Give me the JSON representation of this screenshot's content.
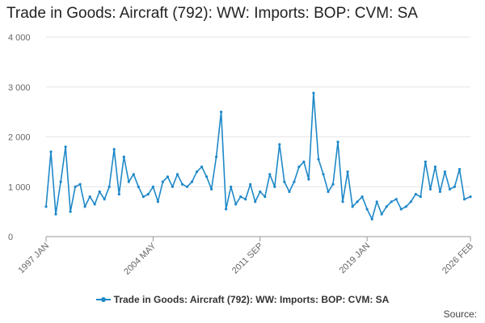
{
  "chart_data": {
    "type": "line",
    "title": "Trade in Goods: Aircraft (792): WW: Imports: BOP: CVM: SA",
    "xlabel": "",
    "ylabel": "",
    "ylim": [
      0,
      4000
    ],
    "y_ticks": [
      0,
      1000,
      2000,
      3000,
      4000
    ],
    "y_tick_labels": [
      "0",
      "1 000",
      "2 000",
      "3 000",
      "4 000"
    ],
    "x_tick_labels": [
      "1997 JAN",
      "2004 MAY",
      "2011 SEP",
      "2019 JAN",
      "2026 FEB"
    ],
    "x_range": [
      "1997 JAN",
      "2026 FEB"
    ],
    "grid": true,
    "legend_position": "bottom",
    "color": "#1e88c8",
    "series": [
      {
        "name": "Trade in Goods: Aircraft (792): WW: Imports: BOP: CVM: SA",
        "x": [
          "1997-01",
          "1997-05",
          "1997-09",
          "1998-01",
          "1998-05",
          "1998-09",
          "1999-01",
          "1999-05",
          "1999-09",
          "2000-01",
          "2000-05",
          "2000-09",
          "2001-01",
          "2001-05",
          "2001-09",
          "2002-01",
          "2002-05",
          "2002-09",
          "2003-01",
          "2003-05",
          "2003-09",
          "2004-01",
          "2004-05",
          "2004-09",
          "2005-01",
          "2005-05",
          "2005-09",
          "2006-01",
          "2006-05",
          "2006-09",
          "2007-01",
          "2007-05",
          "2007-09",
          "2008-01",
          "2008-05",
          "2008-09",
          "2009-01",
          "2009-05",
          "2009-09",
          "2010-01",
          "2010-05",
          "2010-09",
          "2011-01",
          "2011-05",
          "2011-09",
          "2012-01",
          "2012-05",
          "2012-09",
          "2013-01",
          "2013-05",
          "2013-09",
          "2014-01",
          "2014-05",
          "2014-09",
          "2015-01",
          "2015-05",
          "2015-09",
          "2016-01",
          "2016-05",
          "2016-09",
          "2017-01",
          "2017-05",
          "2017-09",
          "2018-01",
          "2018-05",
          "2018-09",
          "2019-01",
          "2019-05",
          "2019-09",
          "2020-01",
          "2020-05",
          "2020-09",
          "2021-01",
          "2021-05",
          "2021-09",
          "2022-01",
          "2022-05",
          "2022-09",
          "2023-01",
          "2023-05",
          "2023-09",
          "2024-01",
          "2024-05",
          "2024-09",
          "2025-01",
          "2025-05",
          "2025-09",
          "2026-02"
        ],
        "values": [
          600,
          1700,
          450,
          1100,
          1800,
          500,
          1000,
          1050,
          600,
          800,
          650,
          900,
          750,
          1000,
          1750,
          850,
          1600,
          1100,
          1250,
          1000,
          800,
          850,
          1000,
          700,
          1100,
          1200,
          1000,
          1250,
          1050,
          1000,
          1100,
          1300,
          1400,
          1200,
          950,
          1600,
          2500,
          550,
          1000,
          650,
          800,
          750,
          1050,
          700,
          900,
          800,
          1250,
          1000,
          1850,
          1100,
          900,
          1100,
          1400,
          1500,
          1150,
          2880,
          1550,
          1250,
          900,
          1050,
          1900,
          700,
          1300,
          600,
          700,
          800,
          550,
          350,
          700,
          450,
          600,
          700,
          750,
          550,
          600,
          700,
          850,
          800,
          1500,
          950,
          1400,
          900,
          1300,
          950,
          1000,
          1350,
          750,
          800
        ]
      }
    ]
  },
  "source_label": "Source:"
}
